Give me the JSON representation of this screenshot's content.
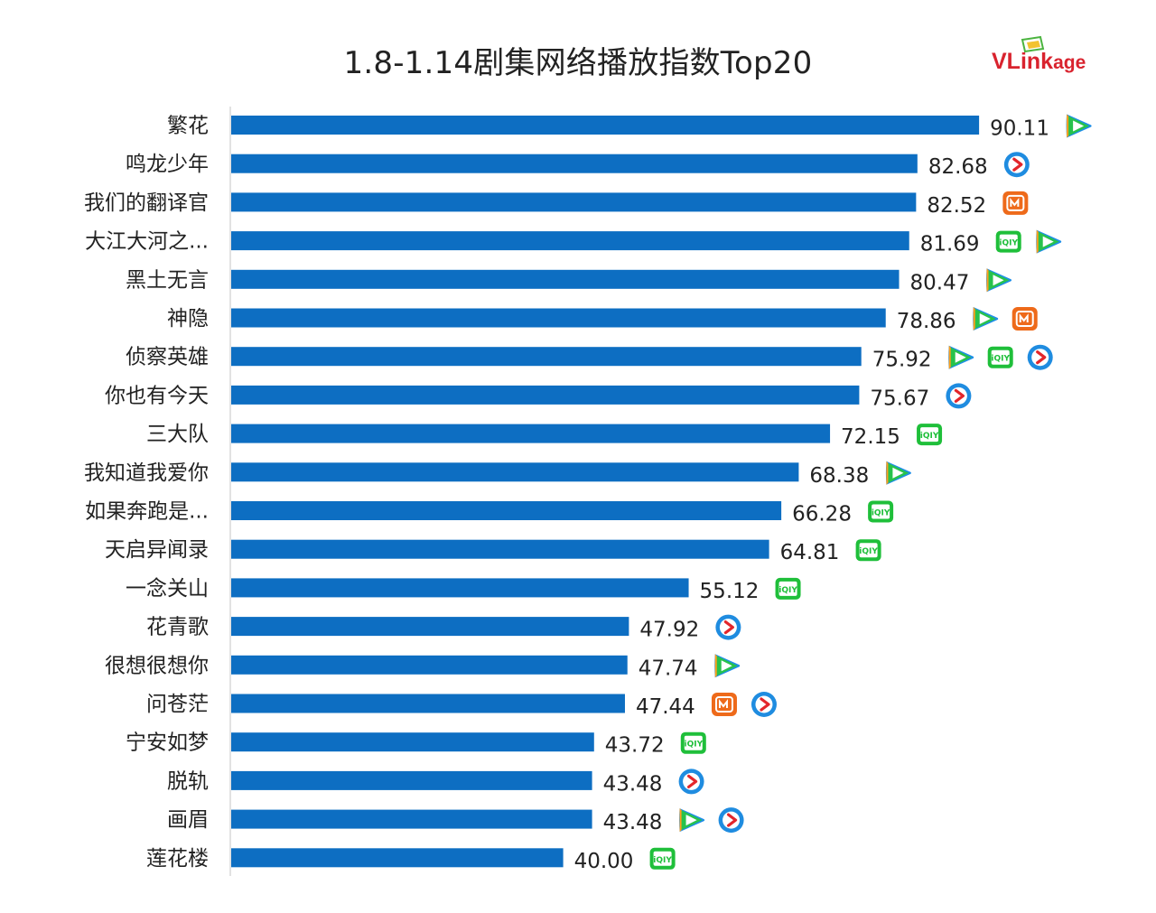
{
  "chart_data": {
    "type": "bar",
    "orientation": "horizontal",
    "title": "1.8-1.14剧集网络播放指数Top20",
    "categories": [
      "繁花",
      "鸣龙少年",
      "我们的翻译官",
      "大江大河之...",
      "黑土无言",
      "神隐",
      "侦察英雄",
      "你也有今天",
      "三大队",
      "我知道我爱你",
      "如果奔跑是...",
      "天启异闻录",
      "一念关山",
      "花青歌",
      "很想很想你",
      "问苍茫",
      "宁安如梦",
      "脱轨",
      "画眉",
      "莲花楼"
    ],
    "values": [
      90.11,
      82.68,
      82.52,
      81.69,
      80.47,
      78.86,
      75.92,
      75.67,
      72.15,
      68.38,
      66.28,
      64.81,
      55.12,
      47.92,
      47.74,
      47.44,
      43.72,
      43.48,
      43.48,
      40.0
    ],
    "value_labels": [
      "90.11",
      "82.68",
      "82.52",
      "81.69",
      "80.47",
      "78.86",
      "75.92",
      "75.67",
      "72.15",
      "68.38",
      "66.28",
      "64.81",
      "55.12",
      "47.92",
      "47.74",
      "47.44",
      "43.72",
      "43.48",
      "43.48",
      "40.00"
    ],
    "platforms": [
      [
        "tencent-video-icon"
      ],
      [
        "youku-icon"
      ],
      [
        "mango-tv-icon"
      ],
      [
        "iqiyi-icon",
        "tencent-video-icon"
      ],
      [
        "tencent-video-icon"
      ],
      [
        "tencent-video-icon",
        "mango-tv-icon"
      ],
      [
        "tencent-video-icon",
        "iqiyi-icon",
        "youku-icon"
      ],
      [
        "youku-icon"
      ],
      [
        "iqiyi-icon"
      ],
      [
        "tencent-video-icon"
      ],
      [
        "iqiyi-icon"
      ],
      [
        "iqiyi-icon"
      ],
      [
        "iqiyi-icon"
      ],
      [
        "youku-icon"
      ],
      [
        "tencent-video-icon"
      ],
      [
        "mango-tv-icon",
        "youku-icon"
      ],
      [
        "iqiyi-icon"
      ],
      [
        "youku-icon"
      ],
      [
        "tencent-video-icon",
        "youku-icon"
      ],
      [
        "iqiyi-icon"
      ]
    ],
    "xlim": [
      0,
      100
    ],
    "grid": false,
    "legend": "none",
    "bar_color": "#0d6ec2"
  },
  "logo": {
    "text_main": "VLink",
    "text_tail": "age"
  },
  "colors": {
    "bar": "#0d6ec2",
    "axis": "#d9d9d9",
    "iqiyi": "#1fbf3a",
    "mango": "#ee6a1a",
    "youku": "#1f8ce0",
    "tencent_green": "#27c24c",
    "tencent_blue": "#1e8ee8",
    "tencent_orange": "#ff9f1a"
  }
}
